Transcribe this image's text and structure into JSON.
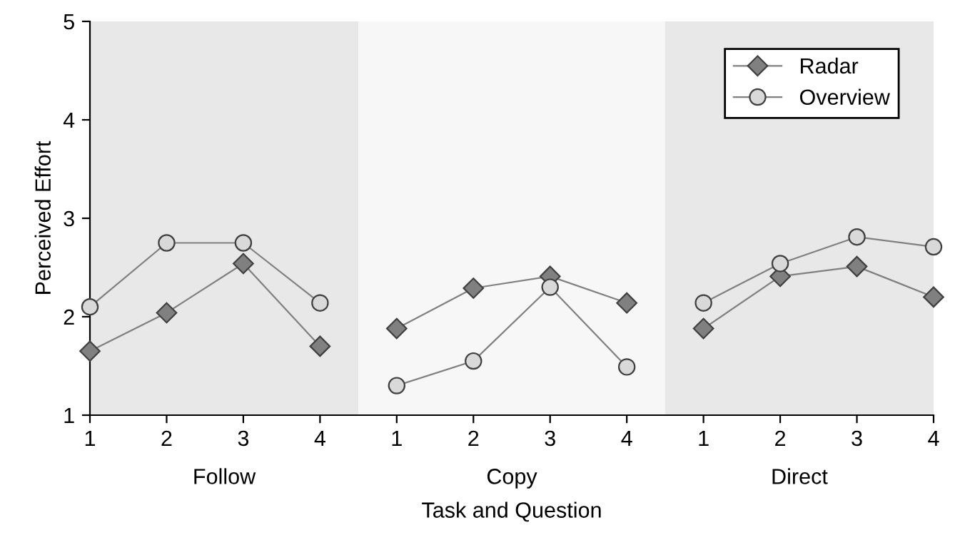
{
  "chart_data": [
    {
      "type": "line",
      "xlabel": "Follow",
      "ylabel": "Perceived Effort",
      "categories": [
        "1",
        "2",
        "3",
        "4"
      ],
      "ylim": [
        1,
        5
      ],
      "yticks": [
        1,
        2,
        3,
        4,
        5
      ],
      "grid": false,
      "line_style": "solid",
      "series": [
        {
          "color": "#808080",
          "marker": "diamond",
          "values": [
            1.65,
            2.04,
            2.54,
            1.7
          ]
        },
        {
          "color": "#d9d9d9",
          "marker": "circle",
          "values": [
            2.1,
            2.75,
            2.75,
            2.14
          ]
        }
      ]
    },
    {
      "type": "line",
      "xlabel": "Copy",
      "categories": [
        "1",
        "2",
        "3",
        "4"
      ],
      "ylim": [
        1,
        5
      ],
      "tick_labels": "x",
      "grid": false,
      "line_style": "solid",
      "annotations": [
        "Task and Question"
      ],
      "series": [
        {
          "color": "#808080",
          "marker": "diamond",
          "values": [
            1.88,
            2.29,
            2.41,
            2.14
          ]
        },
        {
          "color": "#d9d9d9",
          "marker": "circle",
          "values": [
            1.3,
            1.55,
            2.3,
            1.49
          ]
        }
      ]
    },
    {
      "type": "line",
      "xlabel": "Direct",
      "categories": [
        "1",
        "2",
        "3",
        "4"
      ],
      "ylim": [
        1,
        5
      ],
      "tick_labels": "x",
      "grid": false,
      "legend": "top right",
      "line_style": "solid",
      "series": [
        {
          "name": "Radar",
          "color": "#808080",
          "marker": "diamond",
          "values": [
            1.88,
            2.41,
            2.51,
            2.2
          ]
        },
        {
          "name": "Overview",
          "color": "#d9d9d9",
          "marker": "circle",
          "values": [
            2.14,
            2.54,
            2.81,
            2.71
          ]
        }
      ]
    }
  ]
}
